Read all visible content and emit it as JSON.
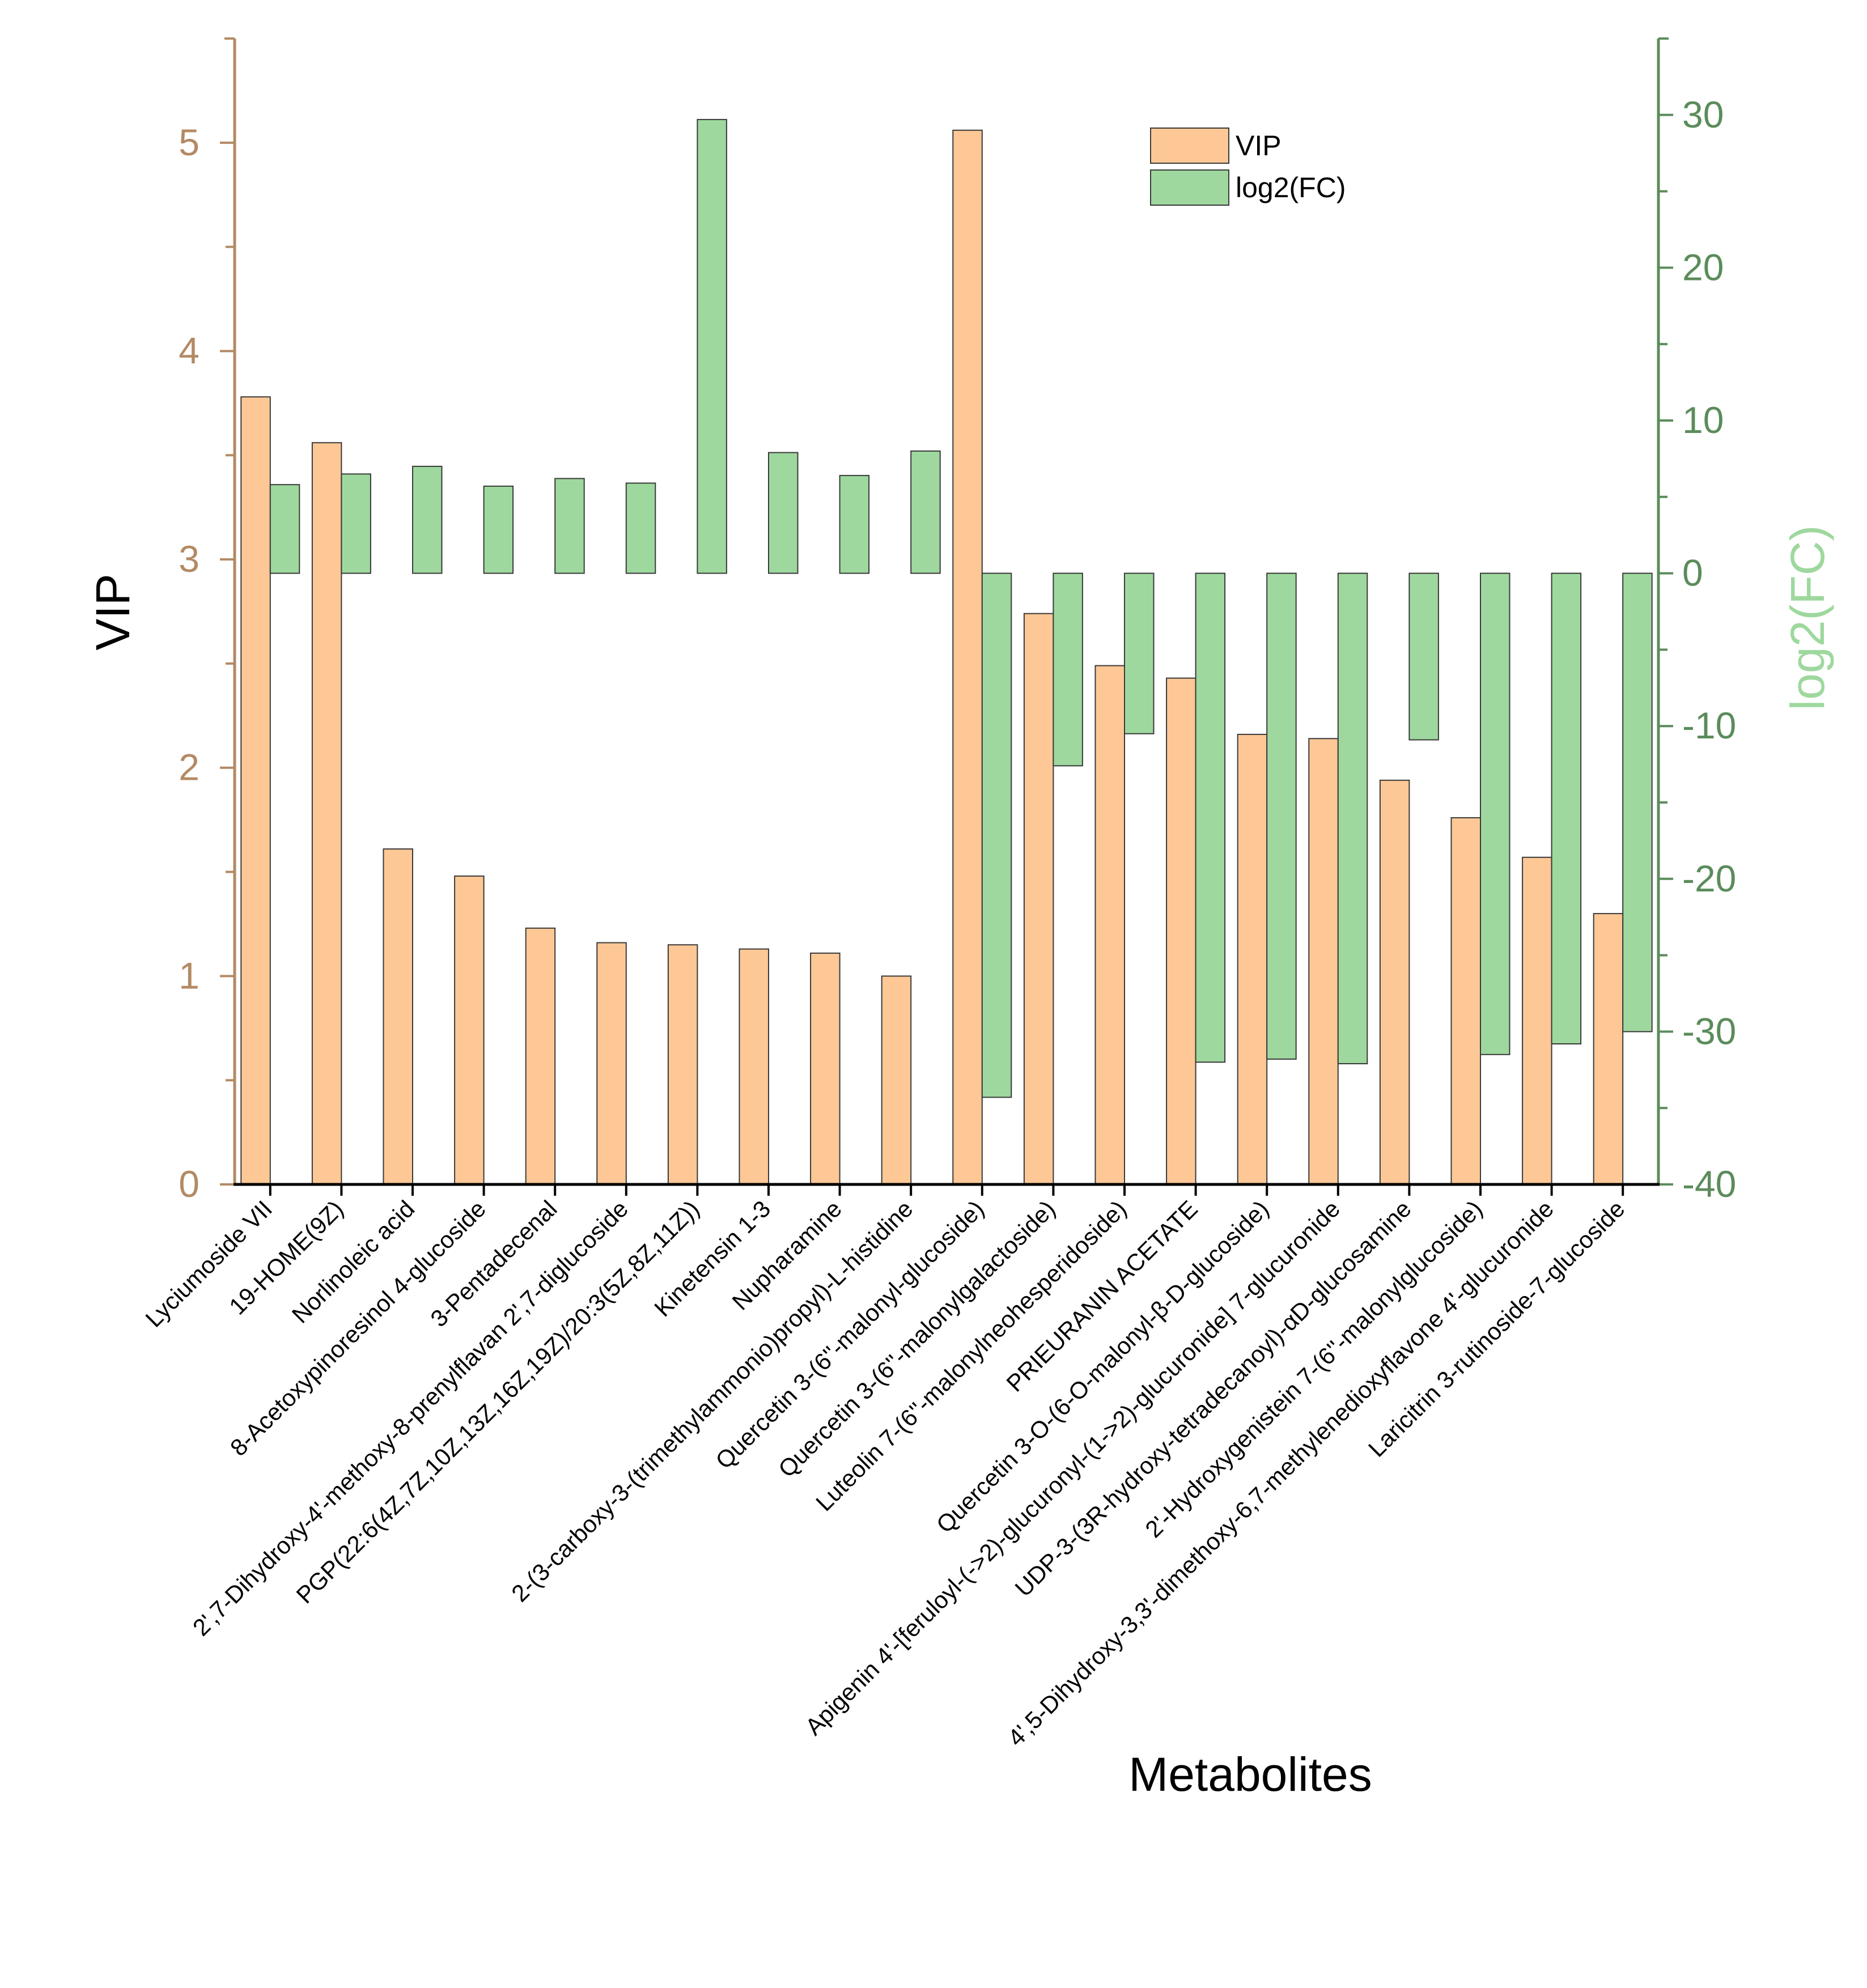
{
  "chart_data": {
    "type": "bar",
    "xlabel": "Metabolites",
    "ylabel": "VIP",
    "y2label": "log2(FC)",
    "ylim": [
      0,
      5.5
    ],
    "y2lim": [
      -40,
      35
    ],
    "yticks": [
      "0",
      "1",
      "2",
      "3",
      "4",
      "5"
    ],
    "y2ticks": [
      "-40",
      "-30",
      "-20",
      "-10",
      "0",
      "10",
      "20",
      "30"
    ],
    "categories": [
      "Lyciumoside VII",
      "19-HOME(9Z)",
      "Norlinoleic acid",
      "8-Acetoxypinoresinol 4-glucoside",
      "3-Pentadecenal",
      "2',7-Dihydroxy-4'-methoxy-8-prenylflavan 2',7-diglucoside",
      "PGP(22:6(4Z,7Z,10Z,13Z,16Z,19Z)/20:3(5Z,8Z,11Z))",
      "Kinetensin 1-3",
      "Nupharamine",
      "2-(3-carboxy-3-(trimethylammonio)propyl)-L-histidine",
      "Quercetin 3-(6''-malonyl-glucoside)",
      "Quercetin 3-(6''-malonylgalactoside)",
      "Luteolin 7-(6''-malonylneohesperidoside)",
      "PRIEURANIN ACETATE",
      "Quercetin 3-O-(6-O-malonyl-β-D-glucoside)",
      "Apigenin 4'-[feruloyl-(->2)-glucuronyl-(1->2)-glucuronide] 7-glucuronide",
      "UDP-3-(3R-hydroxy-tetradecanoyl)-αD-glucosamine",
      "2'-Hydroxygenistein 7-(6''-malonylglucoside)",
      "4',5-Dihydroxy-3,3'-dimethoxy-6,7-methylenedioxyflavone 4'-glucuronide",
      "Laricitrin 3-rutinoside-7-glucoside"
    ],
    "series": [
      {
        "name": "VIP",
        "axis": "left",
        "color": "#FDC896",
        "values": [
          3.78,
          3.56,
          1.61,
          1.48,
          1.23,
          1.16,
          1.15,
          1.13,
          1.11,
          1.0,
          5.06,
          2.74,
          2.49,
          2.43,
          2.16,
          2.14,
          1.94,
          1.76,
          1.57,
          1.3
        ]
      },
      {
        "name": "log2(FC)",
        "axis": "right",
        "color": "#9ED89E",
        "values": [
          5.8,
          6.5,
          7.0,
          5.7,
          6.2,
          5.9,
          29.7,
          7.9,
          6.4,
          8.0,
          -34.3,
          -12.6,
          -10.5,
          -32.0,
          -31.8,
          -32.1,
          -10.9,
          -31.5,
          -30.8,
          -30.0
        ]
      }
    ],
    "legend_position": "top-right",
    "colors": {
      "left_axis": "#B38A64",
      "right_axis": "#5B8C5B",
      "right_axis_label": "#9ED89E",
      "bar_stroke": "#3A3A3A"
    }
  }
}
